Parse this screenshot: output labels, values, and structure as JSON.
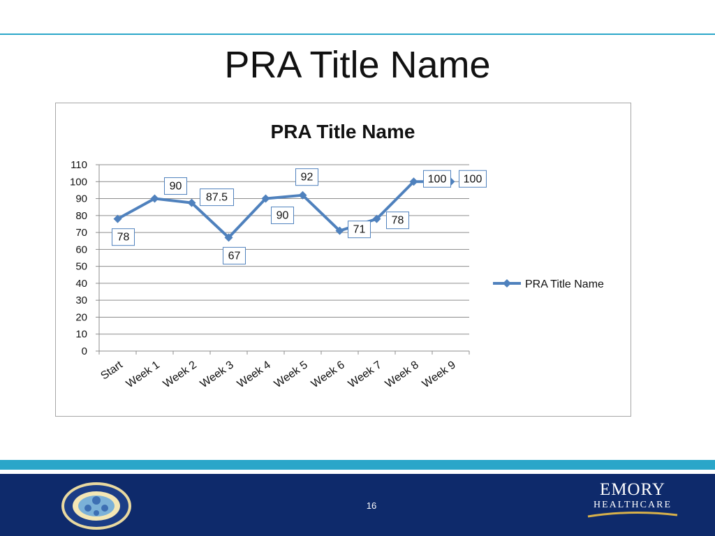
{
  "slide": {
    "title": "PRA Title Name",
    "page_number": "16",
    "footer_brand_line1": "EMORY",
    "footer_brand_line2": "HEALTHCARE"
  },
  "colors": {
    "accent_cyan": "#2aa6c9",
    "footer_navy": "#0e2a6b",
    "series_line": "#4f81bd",
    "grid": "#8c8c8c",
    "label_box_border": "#4f81bd"
  },
  "icons": {
    "seal": "circular-seal-icon",
    "brand": "emory-healthcare-logo"
  },
  "chart_data": {
    "type": "line",
    "title": "PRA Title Name",
    "categories": [
      "Start",
      "Week 1",
      "Week 2",
      "Week 3",
      "Week 4",
      "Week 5",
      "Week 6",
      "Week 7",
      "Week 8",
      "Week 9"
    ],
    "series": [
      {
        "name": "PRA Title Name",
        "values": [
          78,
          90,
          87.5,
          67,
          90,
          92,
          71,
          78,
          100,
          100
        ],
        "data_labels": [
          "78",
          "90",
          "87.5",
          "67",
          "90",
          "92",
          "71",
          "78",
          "100",
          "100"
        ]
      }
    ],
    "ylim": [
      0,
      110
    ],
    "yticks": [
      "0",
      "10",
      "20",
      "30",
      "40",
      "50",
      "60",
      "70",
      "80",
      "90",
      "100",
      "110"
    ],
    "grid": true,
    "legend_position": "right",
    "marker": "diamond"
  }
}
